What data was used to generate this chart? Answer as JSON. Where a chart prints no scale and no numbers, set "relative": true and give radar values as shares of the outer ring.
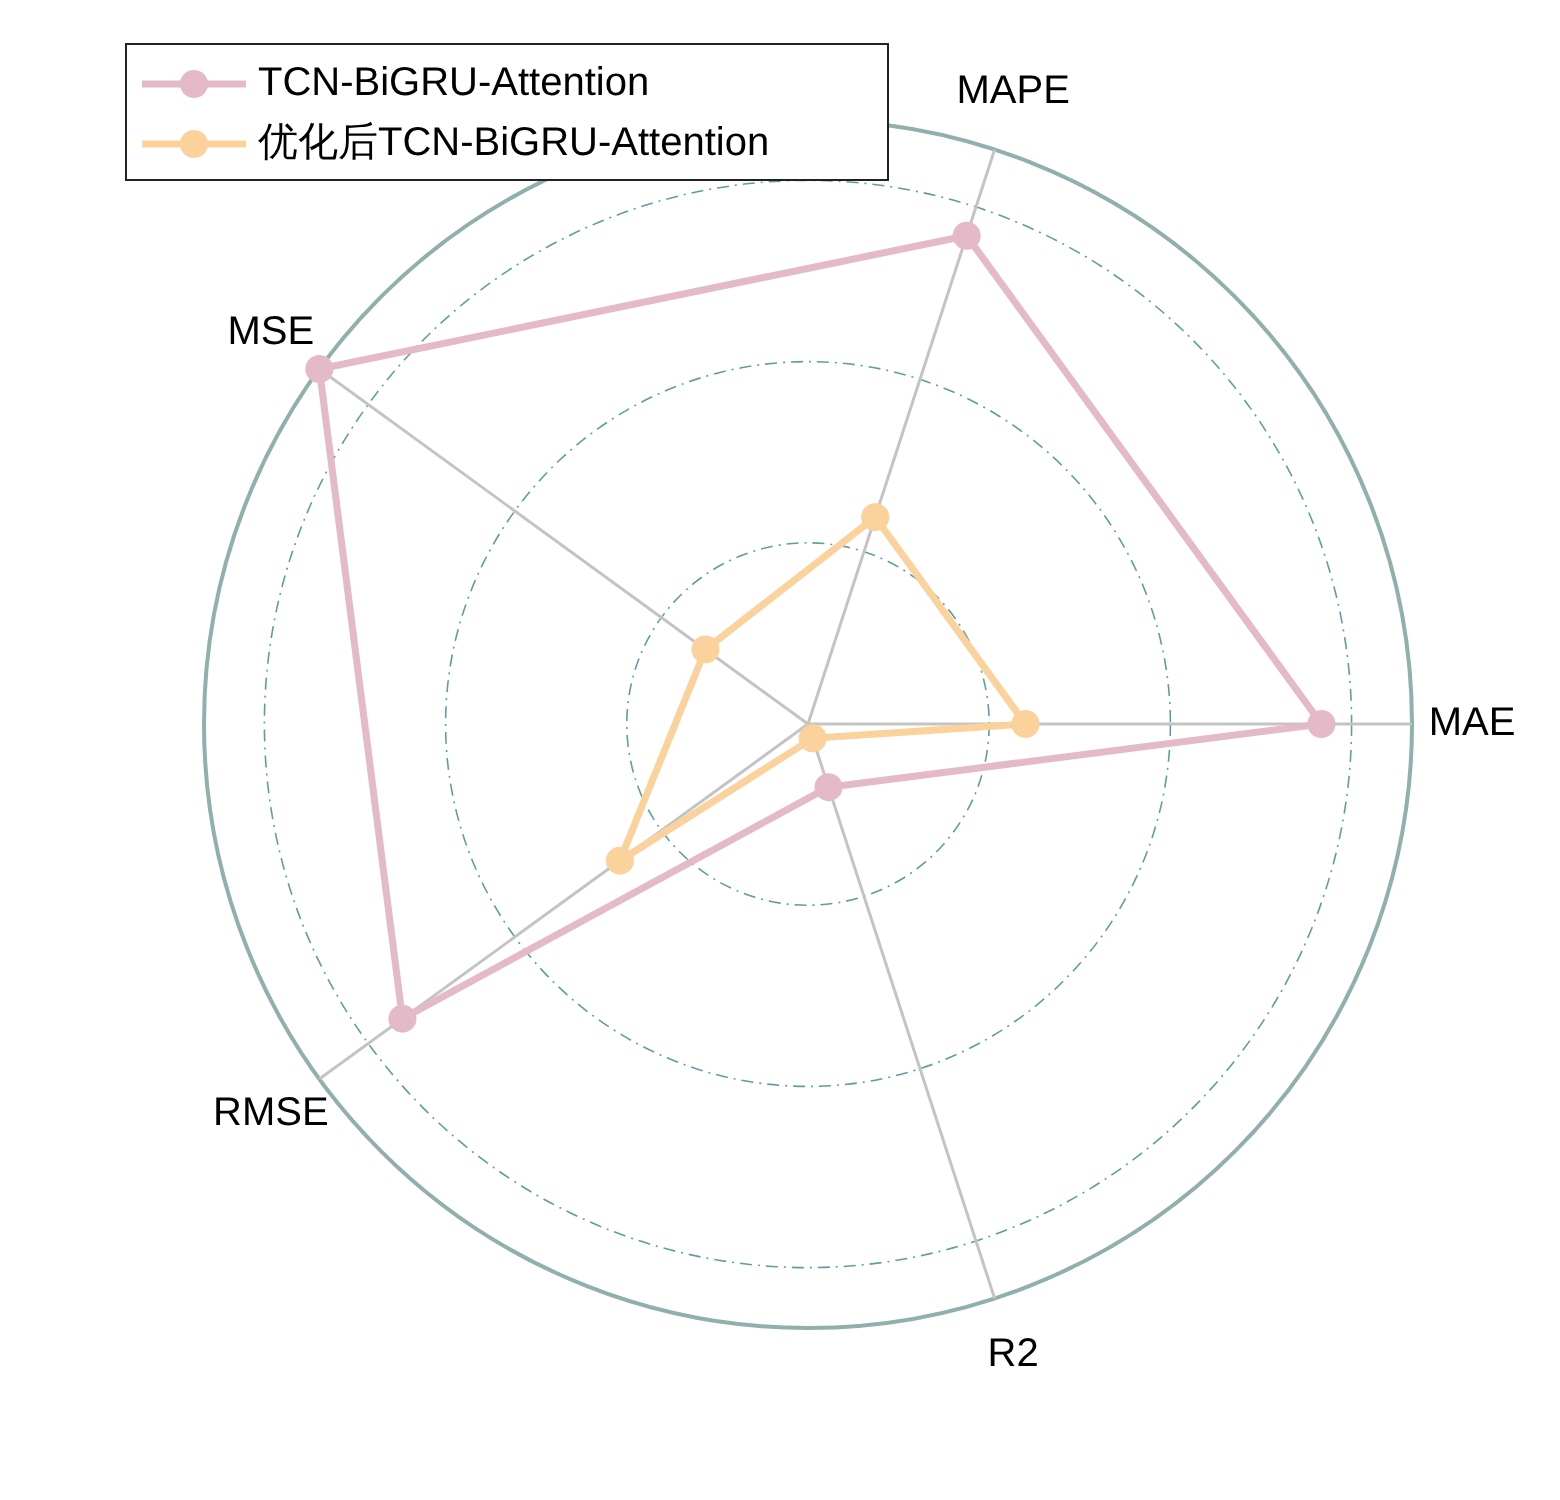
{
  "chart_data": {
    "type": "radar",
    "relative": true,
    "categories": [
      "MAPE",
      "MAE",
      "R2",
      "RMSE",
      "MSE"
    ],
    "grid": true,
    "legend": "top left",
    "marker": "circle",
    "line_style": "solid",
    "series": [
      {
        "name": "TCN-BiGRU-Attention",
        "color": "#e4b9c8",
        "values": [
          0.85,
          0.85,
          0.11,
          0.83,
          1.0
        ]
      },
      {
        "name": "优化后TCN-BiGRU-Attention",
        "color": "#fbd19c",
        "values": [
          0.36,
          0.36,
          0.025,
          0.385,
          0.21
        ]
      }
    ]
  }
}
